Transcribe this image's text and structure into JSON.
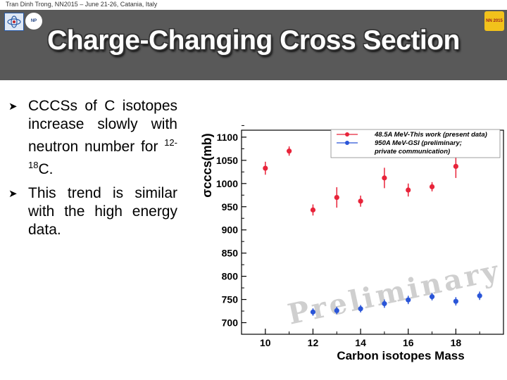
{
  "header": {
    "topline": "Tran Dinh Trong, NN2015 – June 21-26, Catania, Italy",
    "title": "Charge-Changing Cross Section",
    "logo_left_text": "NP",
    "logo_right_text": "NN 2015"
  },
  "bullets": [
    {
      "text": "CCCSs of C isotopes increase slowly with neutron number for ",
      "sup": "12-18",
      "suffix": "C."
    },
    {
      "text": "This trend is similar with the high energy data.",
      "sup": "",
      "suffix": ""
    }
  ],
  "chart_data": {
    "type": "scatter",
    "xlabel": "Carbon isotopes Mass",
    "ylabel": "σcccs(mb)",
    "xlim": [
      9,
      20
    ],
    "ylim": [
      675,
      1115
    ],
    "xticks": [
      10,
      12,
      14,
      16,
      18
    ],
    "yticks": [
      700,
      750,
      800,
      850,
      900,
      950,
      1000,
      1050,
      1100
    ],
    "watermark": "Preliminary",
    "series": [
      {
        "name": "48.5A MeV-This work (present data)",
        "color": "#e8243a",
        "points": [
          {
            "x": 10,
            "y": 1033,
            "err": 14
          },
          {
            "x": 11,
            "y": 1070,
            "err": 10
          },
          {
            "x": 12,
            "y": 943,
            "err": 12
          },
          {
            "x": 13,
            "y": 970,
            "err": 22
          },
          {
            "x": 14,
            "y": 962,
            "err": 12
          },
          {
            "x": 15,
            "y": 1012,
            "err": 22
          },
          {
            "x": 16,
            "y": 986,
            "err": 14
          },
          {
            "x": 17,
            "y": 993,
            "err": 10
          },
          {
            "x": 18,
            "y": 1037,
            "err": 25
          }
        ]
      },
      {
        "name": "950A MeV-GSI (preliminary; private communication)",
        "color": "#2a55d8",
        "points": [
          {
            "x": 12,
            "y": 723,
            "err": 8
          },
          {
            "x": 13,
            "y": 726,
            "err": 8
          },
          {
            "x": 14,
            "y": 730,
            "err": 8
          },
          {
            "x": 15,
            "y": 741,
            "err": 9
          },
          {
            "x": 16,
            "y": 749,
            "err": 9
          },
          {
            "x": 17,
            "y": 756,
            "err": 8
          },
          {
            "x": 18,
            "y": 746,
            "err": 9
          },
          {
            "x": 19,
            "y": 758,
            "err": 9
          }
        ]
      }
    ],
    "legend_lines": [
      "48.5A MeV-This work (present data)",
      "950A MeV-GSI (preliminary;",
      "private communication)"
    ]
  }
}
